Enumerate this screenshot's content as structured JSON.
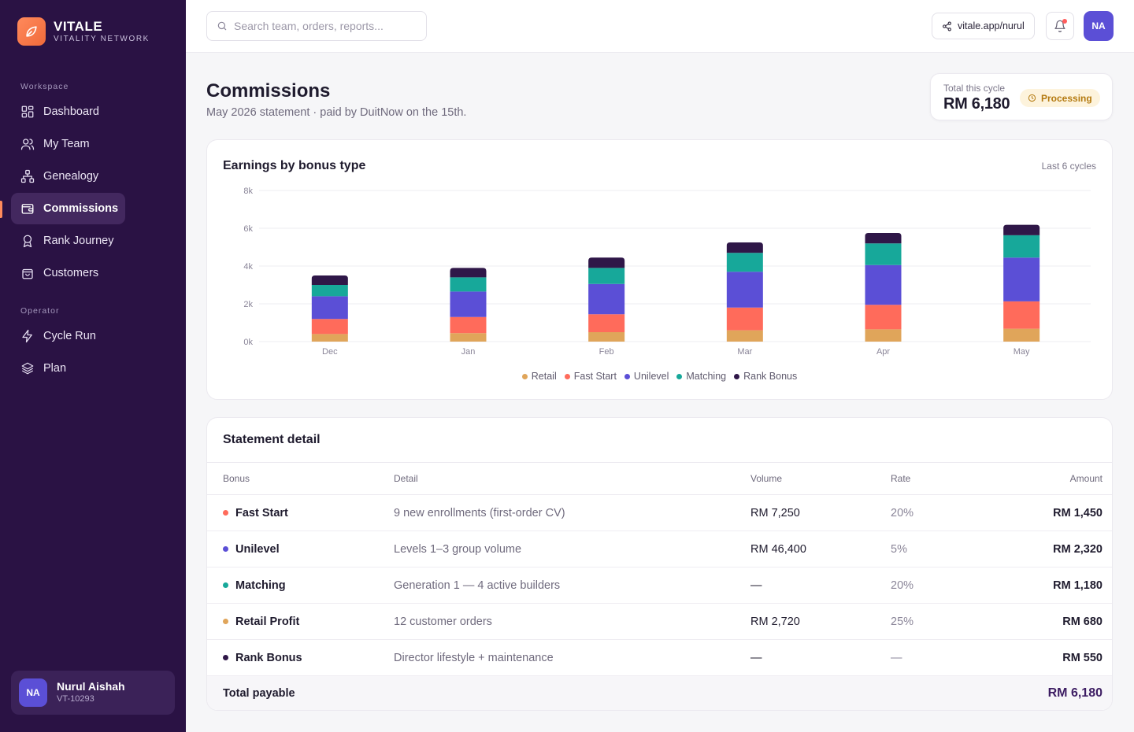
{
  "brand": {
    "name": "VITALE",
    "tagline": "VITALITY NETWORK"
  },
  "sidebar": {
    "sections": [
      {
        "label": "Workspace",
        "items": [
          {
            "label": "Dashboard",
            "icon": "grid-icon"
          },
          {
            "label": "My Team",
            "icon": "users-icon"
          },
          {
            "label": "Genealogy",
            "icon": "hierarchy-icon"
          },
          {
            "label": "Commissions",
            "icon": "wallet-icon",
            "active": true
          },
          {
            "label": "Rank Journey",
            "icon": "award-icon"
          },
          {
            "label": "Customers",
            "icon": "bag-icon"
          }
        ]
      },
      {
        "label": "Operator",
        "items": [
          {
            "label": "Cycle Run",
            "icon": "bolt-icon"
          },
          {
            "label": "Plan",
            "icon": "layers-icon"
          }
        ]
      }
    ],
    "user": {
      "initials": "NA",
      "name": "Nurul Aishah",
      "id": "VT-10293"
    }
  },
  "topbar": {
    "search_placeholder": "Search team, orders, reports...",
    "share_link": "vitale.app/nurul",
    "avatar_initials": "NA"
  },
  "header": {
    "title": "Commissions",
    "subtitle": "May 2026 statement · paid by DuitNow on the 15th.",
    "total_label": "Total this cycle",
    "total_value": "RM 6,180",
    "status": "Processing"
  },
  "colors": {
    "retail": "#e0a55a",
    "fast_start": "#ff6b5b",
    "unilevel": "#5b4fd6",
    "matching": "#17a89a",
    "rank_bonus": "#2f1748",
    "accent": "#2a1244"
  },
  "chart_card": {
    "title": "Earnings by bonus type",
    "range_label": "Last 6 cycles"
  },
  "chart_data": {
    "type": "bar",
    "stacked": true,
    "categories": [
      "Dec",
      "Jan",
      "Feb",
      "Mar",
      "Apr",
      "May"
    ],
    "y_ticks": [
      "0k",
      "2k",
      "4k",
      "6k",
      "8k"
    ],
    "ylim": [
      0,
      8000
    ],
    "grid": true,
    "legend_position": "bottom",
    "series": [
      {
        "name": "Retail",
        "color": "#e0a55a",
        "values": [
          400,
          450,
          500,
          600,
          650,
          680
        ]
      },
      {
        "name": "Fast Start",
        "color": "#ff6b5b",
        "values": [
          800,
          850,
          950,
          1200,
          1300,
          1450
        ]
      },
      {
        "name": "Unilevel",
        "color": "#5b4fd6",
        "values": [
          1200,
          1350,
          1600,
          1900,
          2100,
          2320
        ]
      },
      {
        "name": "Matching",
        "color": "#17a89a",
        "values": [
          600,
          750,
          850,
          1000,
          1150,
          1180
        ]
      },
      {
        "name": "Rank Bonus",
        "color": "#2f1748",
        "values": [
          500,
          500,
          550,
          550,
          550,
          550
        ]
      }
    ]
  },
  "statement": {
    "title": "Statement detail",
    "columns": [
      "Bonus",
      "Detail",
      "Volume",
      "Rate",
      "Amount"
    ],
    "rows": [
      {
        "bonus": "Fast Start",
        "color": "#ff6b5b",
        "detail": "9 new enrollments (first-order CV)",
        "volume": "RM 7,250",
        "rate": "20%",
        "amount": "RM 1,450"
      },
      {
        "bonus": "Unilevel",
        "color": "#5b4fd6",
        "detail": "Levels 1–3 group volume",
        "volume": "RM 46,400",
        "rate": "5%",
        "amount": "RM 2,320"
      },
      {
        "bonus": "Matching",
        "color": "#17a89a",
        "detail": "Generation 1 — 4 active builders",
        "volume": "—",
        "rate": "20%",
        "amount": "RM 1,180"
      },
      {
        "bonus": "Retail Profit",
        "color": "#e0a55a",
        "detail": "12 customer orders",
        "volume": "RM 2,720",
        "rate": "25%",
        "amount": "RM 680"
      },
      {
        "bonus": "Rank Bonus",
        "color": "#2f1748",
        "detail": "Director lifestyle + maintenance",
        "volume": "—",
        "rate": "—",
        "amount": "RM 550"
      }
    ],
    "total_label": "Total payable",
    "total_value": "RM 6,180"
  }
}
